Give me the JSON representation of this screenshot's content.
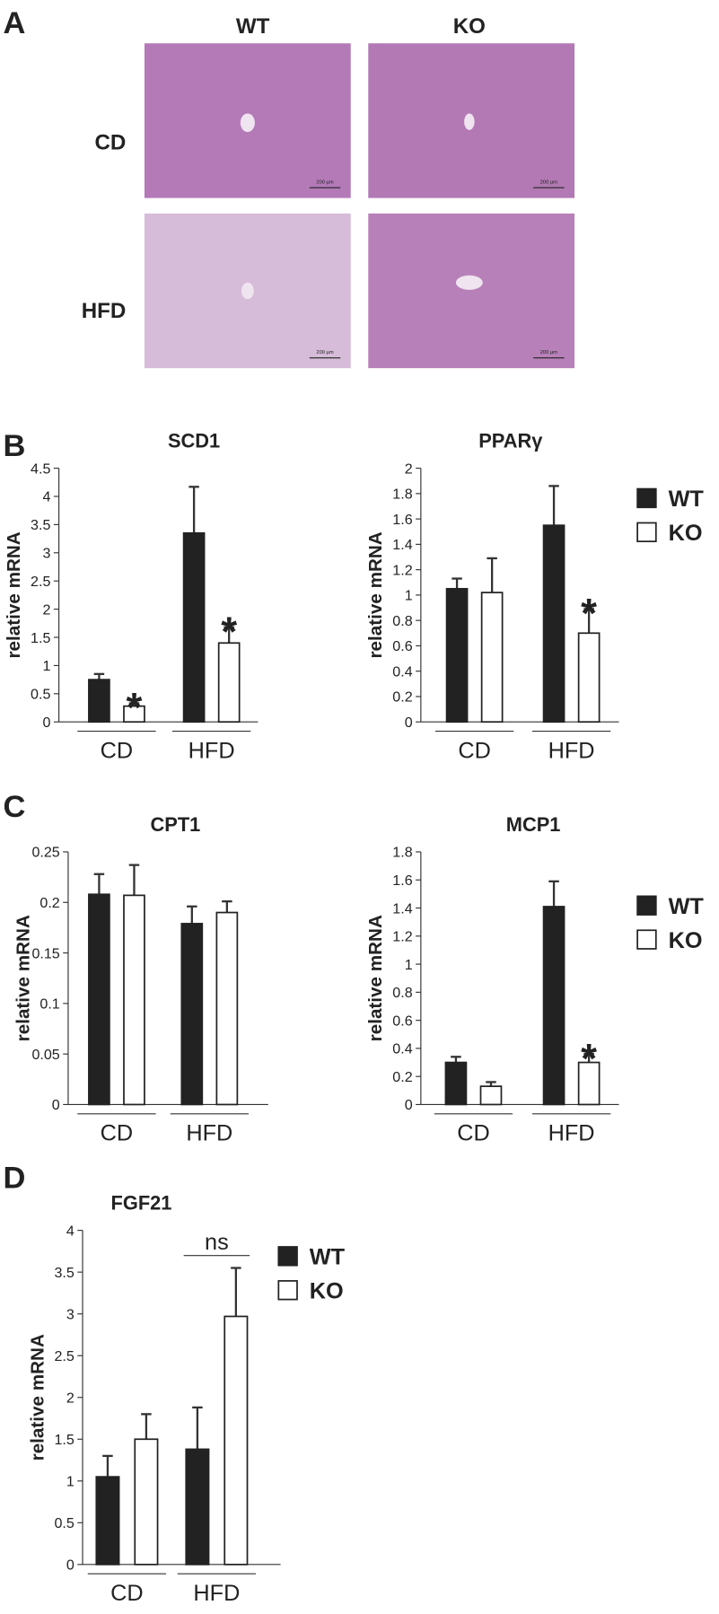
{
  "panel_a": {
    "label": "A",
    "columns": [
      "WT",
      "KO"
    ],
    "rows": [
      "CD",
      "HFD"
    ],
    "scale_bar": "200 µm"
  },
  "panel_labels": [
    "B",
    "C",
    "D"
  ],
  "chart_data": [
    {
      "type": "bar",
      "title": "SCD1",
      "ylabel": "relative mRNA",
      "categories": [
        "CD",
        "HFD"
      ],
      "ylim": [
        0,
        4.5
      ],
      "yticks": [
        0,
        0.5,
        1,
        1.5,
        2,
        2.5,
        3,
        3.5,
        4,
        4.5
      ],
      "series": [
        {
          "name": "WT",
          "color": "#222222",
          "values": [
            0.75,
            3.35
          ],
          "errors": [
            0.1,
            0.82
          ]
        },
        {
          "name": "KO",
          "color": "#ffffff",
          "values": [
            0.28,
            1.4
          ],
          "errors": [
            0.05,
            0.28
          ],
          "annotations": [
            "*",
            "*"
          ]
        }
      ]
    },
    {
      "type": "bar",
      "title": "PPARγ",
      "ylabel": "relative mRNA",
      "categories": [
        "CD",
        "HFD"
      ],
      "ylim": [
        0,
        2
      ],
      "yticks": [
        0,
        0.2,
        0.4,
        0.6,
        0.8,
        1,
        1.2,
        1.4,
        1.6,
        1.8,
        2
      ],
      "legend": true,
      "series": [
        {
          "name": "WT",
          "color": "#222222",
          "values": [
            1.05,
            1.55
          ],
          "errors": [
            0.08,
            0.31
          ]
        },
        {
          "name": "KO",
          "color": "#ffffff",
          "values": [
            1.02,
            0.7
          ],
          "errors": [
            0.27,
            0.19
          ],
          "annotations": [
            null,
            "*"
          ]
        }
      ]
    },
    {
      "type": "bar",
      "title": "CPT1",
      "ylabel": "relative mRNA",
      "categories": [
        "CD",
        "HFD"
      ],
      "ylim": [
        0,
        0.25
      ],
      "yticks": [
        0,
        0.05,
        0.1,
        0.15,
        0.2,
        0.25
      ],
      "series": [
        {
          "name": "WT",
          "color": "#222222",
          "values": [
            0.208,
            0.179
          ],
          "errors": [
            0.02,
            0.017
          ]
        },
        {
          "name": "KO",
          "color": "#ffffff",
          "values": [
            0.207,
            0.19
          ],
          "errors": [
            0.03,
            0.011
          ]
        }
      ]
    },
    {
      "type": "bar",
      "title": "MCP1",
      "ylabel": "relative mRNA",
      "categories": [
        "CD",
        "HFD"
      ],
      "ylim": [
        0,
        1.8
      ],
      "yticks": [
        0,
        0.2,
        0.4,
        0.6,
        0.8,
        1,
        1.2,
        1.4,
        1.6,
        1.8
      ],
      "legend": true,
      "series": [
        {
          "name": "WT",
          "color": "#222222",
          "values": [
            0.3,
            1.41
          ],
          "errors": [
            0.04,
            0.18
          ]
        },
        {
          "name": "KO",
          "color": "#ffffff",
          "values": [
            0.13,
            0.3
          ],
          "errors": [
            0.03,
            0.06
          ],
          "annotations": [
            null,
            "*"
          ]
        }
      ]
    },
    {
      "type": "bar",
      "title": "FGF21",
      "ylabel": "relative mRNA",
      "categories": [
        "CD",
        "HFD"
      ],
      "ylim": [
        0,
        4
      ],
      "yticks": [
        0,
        0.5,
        1,
        1.5,
        2,
        2.5,
        3,
        3.5,
        4
      ],
      "legend": true,
      "group_annotations": [
        null,
        "ns"
      ],
      "series": [
        {
          "name": "WT",
          "color": "#222222",
          "values": [
            1.05,
            1.38
          ],
          "errors": [
            0.25,
            0.5
          ]
        },
        {
          "name": "KO",
          "color": "#ffffff",
          "values": [
            1.5,
            2.97
          ],
          "errors": [
            0.3,
            0.58
          ]
        }
      ]
    }
  ]
}
